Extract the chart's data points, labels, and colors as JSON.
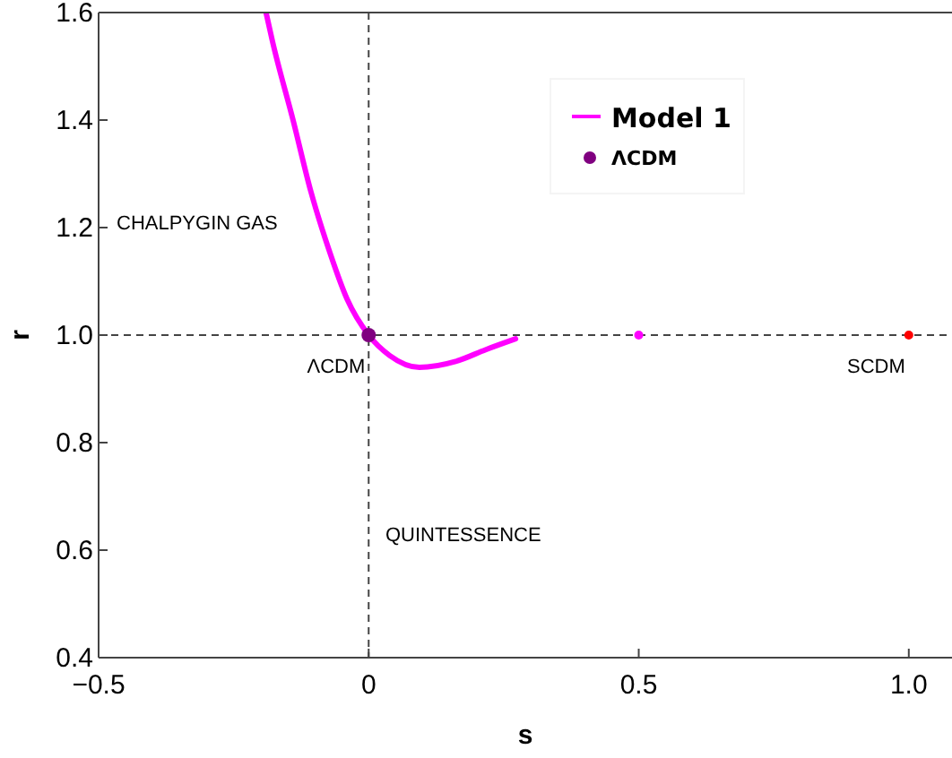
{
  "chart_data": {
    "type": "line",
    "xlabel": "s",
    "ylabel": "r",
    "xlim": [
      -0.5,
      1.08
    ],
    "ylim": [
      0.4,
      1.6
    ],
    "xticks": [
      {
        "value": -0.5,
        "label": "−0.5"
      },
      0,
      0.5,
      {
        "value": 1,
        "label": "1.0"
      }
    ],
    "yticks": [
      {
        "value": 0.4,
        "label": "0.4"
      },
      {
        "value": 0.6,
        "label": "0.6"
      },
      {
        "value": 0.8,
        "label": "0.8"
      },
      {
        "value": 1,
        "label": "1.0"
      },
      {
        "value": 1.2,
        "label": "1.2"
      },
      {
        "value": 1.4,
        "label": "1.4"
      },
      {
        "value": 1.6,
        "label": "1.6"
      }
    ],
    "grid": false,
    "legend": "top right",
    "series": [
      {
        "name": "Model 1",
        "color": "#ff00ff",
        "x": [
          -0.19,
          -0.178,
          -0.14,
          -0.107,
          -0.073,
          -0.04,
          0,
          0.039,
          0.094,
          0.161,
          0.217,
          0.272
        ],
        "values": [
          1.6,
          1.546,
          1.4,
          1.267,
          1.157,
          1.067,
          1.0,
          0.962,
          0.94,
          0.951,
          0.973,
          0.993
        ]
      },
      {
        "name": "ΛCDM",
        "type": "scatter",
        "color": "#800080",
        "marker": "circle",
        "x": [
          0
        ],
        "values": [
          1.0
        ]
      },
      {
        "type": "scatter",
        "color": "#ff00ff",
        "marker": "circle",
        "x": [
          0.5
        ],
        "values": [
          1.0
        ]
      },
      {
        "type": "scatter",
        "color": "#ff0000",
        "marker": "circle",
        "x": [
          1
        ],
        "values": [
          1.0
        ]
      }
    ],
    "ref_lines": [
      {
        "axis": "x",
        "value": 0,
        "line_style": "dashed"
      },
      {
        "axis": "y",
        "value": 1,
        "line_style": "dashed"
      }
    ],
    "annotations": [
      "CHALPYGIN GAS",
      "QUINTESSENCE",
      {
        "text": "ΛCDM",
        "x": 0,
        "y": 1.0
      },
      {
        "text": "SCDM",
        "x": 1,
        "y": 1.0
      }
    ]
  }
}
